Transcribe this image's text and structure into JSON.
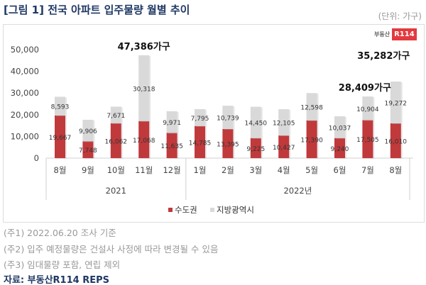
{
  "header": {
    "title": "[그림 1] 전국 아파트 입주물량 월별 추이",
    "unit": "(단위: 가구)",
    "logo_text": "부동산",
    "logo_badge": "R114"
  },
  "chart_data": {
    "type": "bar",
    "stacked": true,
    "title": "[그림 1] 전국 아파트 입주물량 월별 추이",
    "categories": [
      "8월",
      "9월",
      "10월",
      "11월",
      "12월",
      "1월",
      "2월",
      "3월",
      "4월",
      "5월",
      "6월",
      "7월",
      "8월"
    ],
    "year_groups": [
      {
        "label": "2021",
        "count": 5
      },
      {
        "label": "2022년",
        "count": 8
      }
    ],
    "series": [
      {
        "name": "수도권",
        "color": "#c0393b",
        "values": [
          19667,
          7748,
          16062,
          17068,
          11635,
          14785,
          13395,
          9225,
          10427,
          17390,
          9240,
          17505,
          16010
        ],
        "labels": [
          "19,667",
          "7,748",
          "16,062",
          "17,068",
          "11,635",
          "14,785",
          "13,395",
          "9,225",
          "10,427",
          "17,390",
          "9,240",
          "17,505",
          "16,010"
        ]
      },
      {
        "name": "지방광역시",
        "color": "#d9d9d9",
        "values": [
          8593,
          9906,
          7671,
          30318,
          9971,
          7795,
          10739,
          14450,
          12105,
          12598,
          10037,
          10904,
          19272
        ],
        "labels": [
          "8,593",
          "9,906",
          "7,671",
          "30,318",
          "9,971",
          "7,795",
          "10,739",
          "14,450",
          "12,105",
          "12,598",
          "10,037",
          "10,904",
          "19,272"
        ]
      }
    ],
    "annotations": [
      {
        "index": 3,
        "text": "47,386가구"
      },
      {
        "index": 11,
        "text": "28,409가구"
      },
      {
        "index": 12,
        "text": "35,282가구"
      }
    ],
    "yticks": [
      "0",
      "10,000",
      "20,000",
      "30,000",
      "40,000",
      "50,000"
    ],
    "ylim": [
      0,
      50000
    ],
    "ylabel": "",
    "xlabel": "",
    "legend_position": "bottom-center",
    "grid": false
  },
  "notes": [
    "(주1) 2022.06.20 조사 기준",
    "(주2) 입주 예정물량은 건설사 사정에 따라 변경될 수 있음",
    "(주3) 임대물량 포함, 연립 제외"
  ],
  "source": "자료: 부동산R114 REPS"
}
